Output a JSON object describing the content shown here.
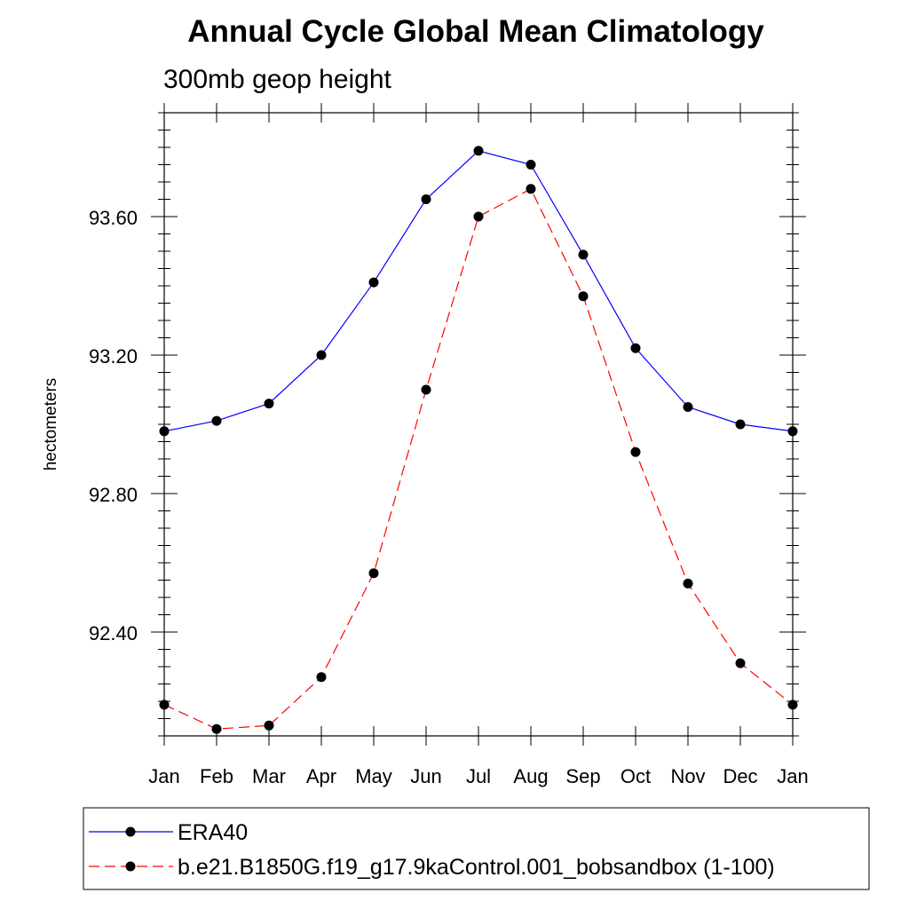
{
  "chart_data": {
    "type": "line",
    "title": "Annual Cycle Global Mean Climatology",
    "subtitle": "300mb geop height",
    "ylabel": "hectometers",
    "xlabel": "",
    "categories": [
      "Jan",
      "Feb",
      "Mar",
      "Apr",
      "May",
      "Jun",
      "Jul",
      "Aug",
      "Sep",
      "Oct",
      "Nov",
      "Dec",
      "Jan"
    ],
    "ylim": [
      92.1,
      93.9
    ],
    "yticks": [
      92.4,
      92.8,
      93.2,
      93.6
    ],
    "ytick_labels": [
      "92.40",
      "92.80",
      "93.20",
      "93.60"
    ],
    "grid": false,
    "legend_position": "bottom",
    "series": [
      {
        "name": "ERA40",
        "color": "#0000ff",
        "dash": "solid",
        "values": [
          92.98,
          93.01,
          93.06,
          93.2,
          93.41,
          93.65,
          93.79,
          93.75,
          93.49,
          93.22,
          93.05,
          93.0,
          92.98
        ]
      },
      {
        "name": "b.e21.B1850G.f19_g17.9kaControl.001_bobsandbox (1-100)",
        "color": "#ff0000",
        "dash": "dashed",
        "values": [
          92.19,
          92.12,
          92.13,
          92.27,
          92.57,
          93.1,
          93.6,
          93.68,
          93.37,
          92.92,
          92.54,
          92.31,
          92.19
        ]
      }
    ]
  }
}
